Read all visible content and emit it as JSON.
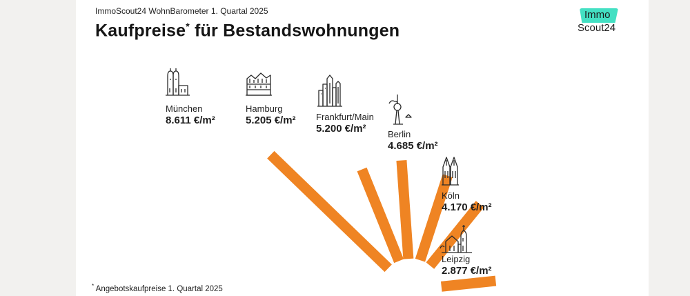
{
  "header": {
    "supertitle": "ImmoScout24 WohnBarometer 1. Quartal 2025",
    "title": "Kaufpreise",
    "title_mark": "*",
    "title_rest": " für Bestandswohnungen"
  },
  "logo": {
    "line1": "Immo",
    "line2": "Scout24",
    "accent_color": "#43e0c3"
  },
  "footnote": {
    "mark": "*",
    "text": " Angebotskaufpreise 1. Quartal 2025"
  },
  "colors": {
    "bar": "#ef8423",
    "background": "#ffffff"
  },
  "chart_data": {
    "type": "bar",
    "orientation": "radial",
    "categories": [
      "München",
      "Hamburg",
      "Frankfurt/Main",
      "Berlin",
      "Köln",
      "Leipzig"
    ],
    "values": [
      8611,
      5205,
      5200,
      4685,
      4170,
      2877
    ],
    "value_labels": [
      "8.611 €/m²",
      "5.205 €/m²",
      "5.200 €/m²",
      "4.685 €/m²",
      "4.170 €/m²",
      "2.877 €/m²"
    ],
    "unit": "€/m²",
    "icons": [
      "frauenkirche-icon",
      "elbphilharmonie-icon",
      "skyline-icon",
      "fernsehturm-icon",
      "dom-icon",
      "church-icon"
    ]
  }
}
